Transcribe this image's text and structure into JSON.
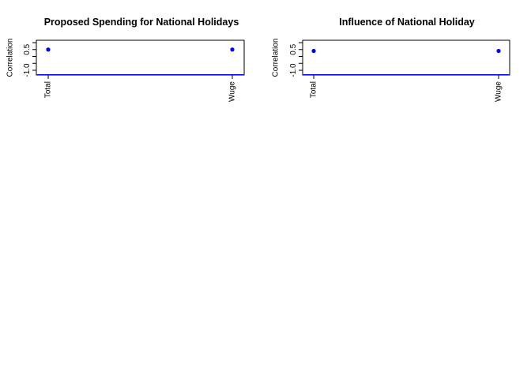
{
  "chart_data": [
    {
      "type": "scatter",
      "title": "Proposed Spending for National Holidays",
      "xlabel": "",
      "ylabel": "Correlation",
      "categories": [
        "Total",
        "Wuge"
      ],
      "values": [
        0.5,
        0.5
      ],
      "ylim": [
        -1.0,
        1.0
      ],
      "yticks": [
        "-1.0",
        "0.5"
      ],
      "grid": false,
      "legend": "none",
      "point_color": "#0000ff",
      "reference_line_color": "#0000ff"
    },
    {
      "type": "scatter",
      "title": "Influence of National Holiday",
      "xlabel": "",
      "ylabel": "Correlation",
      "categories": [
        "Total",
        "Wuge"
      ],
      "values": [
        0.4,
        0.4
      ],
      "ylim": [
        -1.0,
        1.0
      ],
      "yticks": [
        "-1.0",
        "0.5"
      ],
      "grid": false,
      "legend": "none",
      "point_color": "#0000ff",
      "reference_line_color": "#0000ff"
    }
  ]
}
